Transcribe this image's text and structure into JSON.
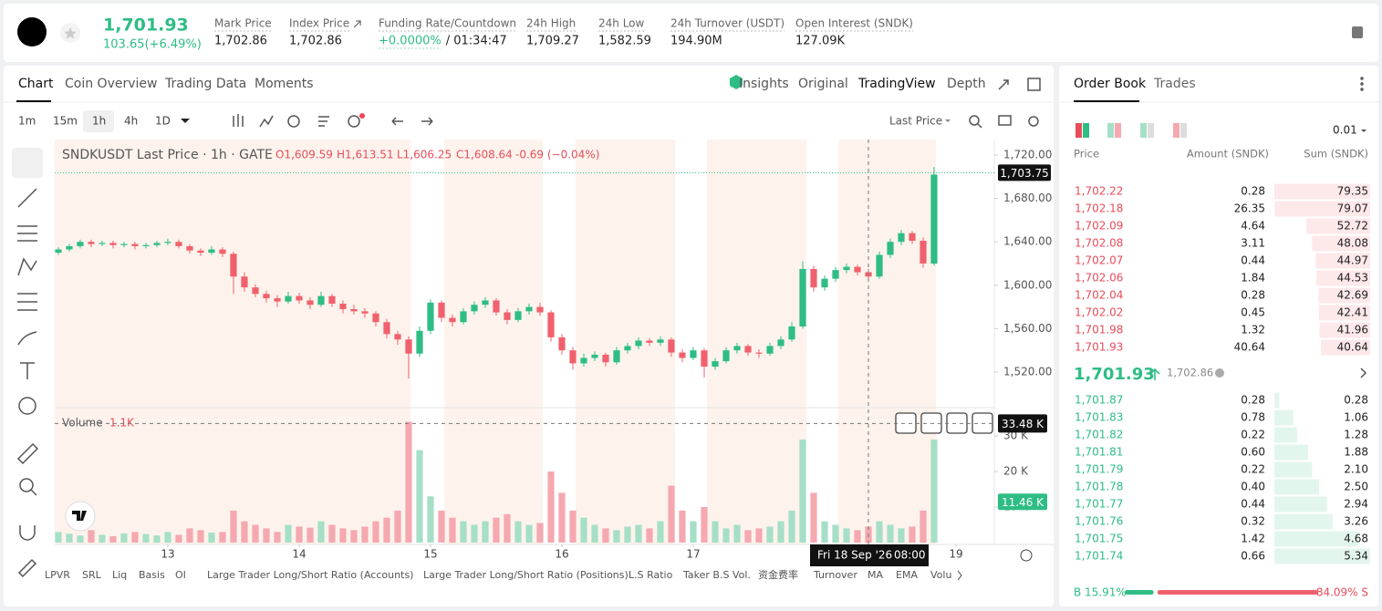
{
  "header": {
    "price": "1,701.93",
    "change": "103.65(+6.49%)",
    "stats": [
      {
        "label": "Mark Price",
        "value": "1,702.86"
      },
      {
        "label": "Index Price",
        "value": "1,702.86"
      },
      {
        "label": "Funding Rate/Countdown",
        "value": "+0.0000%",
        "value2": "/ 01:34:47"
      },
      {
        "label": "24h High",
        "value": "1,709.27"
      },
      {
        "label": "24h Low",
        "value": "1,582.59"
      },
      {
        "label": "24h Turnover (USDT)",
        "value": "194.90M"
      },
      {
        "label": "Open Interest (SNDK)",
        "value": "127.09K"
      }
    ]
  },
  "tabs": [
    "Chart",
    "Coin Overview",
    "Trading Data",
    "Moments"
  ],
  "views": [
    "Insights",
    "Original",
    "TradingView",
    "Depth"
  ],
  "intervals": [
    "1m",
    "15m",
    "1h",
    "4h",
    "1D"
  ],
  "price_type": "Last Price",
  "chart": {
    "type": "candlestick",
    "legend_title": "SNDKUSDT Last Price · 1h · GATE",
    "ohlc": [
      "O1,609.59",
      "H1,613.51",
      "L1,606.25",
      "C1,608.64",
      "-0.69 (−0.04%)"
    ],
    "candles": [
      [
        1630,
        1635,
        1628,
        1633
      ],
      [
        1633,
        1638,
        1631,
        1636
      ],
      [
        1636,
        1642,
        1634,
        1640
      ],
      [
        1640,
        1642,
        1635,
        1638
      ],
      [
        1638,
        1641,
        1636,
        1639
      ],
      [
        1639,
        1641,
        1634,
        1637
      ],
      [
        1637,
        1640,
        1635,
        1638
      ],
      [
        1638,
        1640,
        1633,
        1636
      ],
      [
        1636,
        1639,
        1634,
        1637
      ],
      [
        1637,
        1641,
        1635,
        1639
      ],
      [
        1639,
        1643,
        1637,
        1640
      ],
      [
        1640,
        1642,
        1634,
        1636
      ],
      [
        1636,
        1638,
        1629,
        1632
      ],
      [
        1632,
        1634,
        1627,
        1630
      ],
      [
        1630,
        1636,
        1628,
        1633
      ],
      [
        1633,
        1635,
        1626,
        1629
      ],
      [
        1629,
        1631,
        1592,
        1608
      ],
      [
        1608,
        1612,
        1594,
        1598
      ],
      [
        1598,
        1601,
        1589,
        1592
      ],
      [
        1592,
        1595,
        1584,
        1588
      ],
      [
        1588,
        1591,
        1580,
        1585
      ],
      [
        1585,
        1594,
        1583,
        1590
      ],
      [
        1590,
        1593,
        1583,
        1586
      ],
      [
        1586,
        1589,
        1578,
        1582
      ],
      [
        1582,
        1594,
        1580,
        1590
      ],
      [
        1590,
        1592,
        1580,
        1583
      ],
      [
        1583,
        1586,
        1574,
        1578
      ],
      [
        1578,
        1582,
        1573,
        1576
      ],
      [
        1576,
        1579,
        1570,
        1574
      ],
      [
        1574,
        1576,
        1562,
        1566
      ],
      [
        1566,
        1569,
        1551,
        1555
      ],
      [
        1555,
        1558,
        1545,
        1550
      ],
      [
        1550,
        1553,
        1514,
        1537
      ],
      [
        1537,
        1562,
        1534,
        1558
      ],
      [
        1558,
        1587,
        1555,
        1584
      ],
      [
        1584,
        1586,
        1566,
        1570
      ],
      [
        1570,
        1573,
        1562,
        1566
      ],
      [
        1566,
        1579,
        1564,
        1576
      ],
      [
        1576,
        1585,
        1573,
        1582
      ],
      [
        1582,
        1589,
        1579,
        1586
      ],
      [
        1586,
        1588,
        1572,
        1575
      ],
      [
        1575,
        1578,
        1564,
        1568
      ],
      [
        1568,
        1579,
        1566,
        1576
      ],
      [
        1576,
        1583,
        1573,
        1580
      ],
      [
        1580,
        1584,
        1572,
        1575
      ],
      [
        1575,
        1577,
        1548,
        1552
      ],
      [
        1552,
        1555,
        1536,
        1540
      ],
      [
        1540,
        1543,
        1522,
        1528
      ],
      [
        1528,
        1537,
        1525,
        1533
      ],
      [
        1533,
        1539,
        1530,
        1536
      ],
      [
        1536,
        1538,
        1525,
        1529
      ],
      [
        1529,
        1543,
        1527,
        1540
      ],
      [
        1540,
        1547,
        1537,
        1544
      ],
      [
        1544,
        1552,
        1541,
        1549
      ],
      [
        1549,
        1551,
        1544,
        1547
      ],
      [
        1547,
        1553,
        1544,
        1550
      ],
      [
        1550,
        1552,
        1534,
        1538
      ],
      [
        1538,
        1541,
        1529,
        1533
      ],
      [
        1533,
        1543,
        1531,
        1540
      ],
      [
        1540,
        1542,
        1515,
        1525
      ],
      [
        1525,
        1533,
        1522,
        1530
      ],
      [
        1530,
        1543,
        1528,
        1540
      ],
      [
        1540,
        1547,
        1537,
        1544
      ],
      [
        1544,
        1546,
        1535,
        1538
      ],
      [
        1538,
        1541,
        1533,
        1537
      ],
      [
        1537,
        1547,
        1535,
        1544
      ],
      [
        1544,
        1553,
        1541,
        1550
      ],
      [
        1550,
        1566,
        1548,
        1562
      ],
      [
        1562,
        1622,
        1560,
        1615
      ],
      [
        1615,
        1618,
        1594,
        1598
      ],
      [
        1598,
        1609,
        1595,
        1606
      ],
      [
        1606,
        1617,
        1603,
        1614
      ],
      [
        1614,
        1620,
        1611,
        1617
      ],
      [
        1617,
        1619,
        1609,
        1612
      ],
      [
        1612,
        1615,
        1604,
        1608
      ],
      [
        1608,
        1631,
        1606,
        1628
      ],
      [
        1628,
        1643,
        1625,
        1640
      ],
      [
        1640,
        1651,
        1637,
        1648
      ],
      [
        1648,
        1650,
        1638,
        1641
      ],
      [
        1641,
        1644,
        1616,
        1620
      ],
      [
        1620,
        1709,
        1618,
        1702
      ]
    ],
    "volumes": [
      3000,
      2500,
      2000,
      3500,
      2200,
      1800,
      2600,
      3000,
      2400,
      2000,
      3000,
      2200,
      4000,
      3500,
      2800,
      3000,
      9000,
      6000,
      5000,
      4000,
      3000,
      5000,
      4500,
      4200,
      6000,
      5000,
      4000,
      3500,
      4500,
      6000,
      7000,
      9000,
      34000,
      26000,
      13000,
      9000,
      7000,
      6000,
      5000,
      6000,
      7000,
      8000,
      6000,
      5000,
      5500,
      20000,
      14000,
      9000,
      7000,
      5000,
      4000,
      3500,
      4500,
      5000,
      4000,
      6000,
      16000,
      9000,
      6000,
      10000,
      6000,
      4000,
      5000,
      3500,
      4000,
      4500,
      6000,
      9000,
      29000,
      14000,
      6000,
      5000,
      4000,
      3500,
      4500,
      6000,
      5000,
      4000,
      4500,
      9000,
      29000
    ],
    "up_color": "#2ebd85",
    "down_color": "#f0616d",
    "up_volume_color": "#a6dfc7",
    "down_volume_color": "#f5a8b0",
    "ylim": [
      1487.2,
      1734.3
    ],
    "yticks": [
      {
        "value": 1520,
        "label": "1,520.00"
      },
      {
        "value": 1560,
        "label": "1,560.00"
      },
      {
        "value": 1600,
        "label": "1,600.00"
      },
      {
        "value": 1640,
        "label": "1,640.00"
      },
      {
        "value": 1680,
        "label": "1,680.00"
      },
      {
        "value": 1720,
        "label": "1,720.00"
      }
    ],
    "vol_ylim": [
      0,
      35900
    ],
    "vol_yticks": [
      {
        "value": 10000,
        "label": "10 K"
      },
      {
        "value": 20000,
        "label": "20 K"
      },
      {
        "value": 30000,
        "label": "30 K"
      }
    ],
    "xlim": [
      -0.33,
      85.5
    ],
    "xticks": [
      {
        "value": 10,
        "label": "13"
      },
      {
        "value": 22,
        "label": "14"
      },
      {
        "value": 34,
        "label": "15"
      },
      {
        "value": 46,
        "label": "16"
      },
      {
        "value": 58,
        "label": "17"
      },
      {
        "value": 82,
        "label": "19"
      }
    ],
    "last_price": {
      "value": 1703.75,
      "label": "1,703.75"
    },
    "volume_title": "Volume",
    "volume_value": "1.1K",
    "crosshair": {
      "x": 74,
      "label": "Fri 18 Sep '26",
      "time": "08:00",
      "volume": {
        "value": 33480,
        "label": "33.48 K"
      }
    },
    "last_volume": {
      "value": 11460,
      "label": "11.46 K"
    },
    "grid": false
  },
  "indicators": [
    "LPVR",
    "SRL",
    "Liq",
    "Basis",
    "OI",
    "Large Trader Long/Short Ratio (Accounts)",
    "Large Trader Long/Short Ratio (Positions)",
    "L.S Ratio",
    "Taker B.S Vol.",
    "资金费率",
    "Turnover",
    "MA",
    "EMA",
    "Volu"
  ],
  "orderbook": {
    "tabs": [
      "Order Book",
      "Trades"
    ],
    "tick": "0.01",
    "columns": [
      "Price",
      "Amount (SNDK)",
      "Sum (SNDK)"
    ],
    "asks": [
      [
        "1,702.22",
        "0.28",
        "79.35"
      ],
      [
        "1,702.18",
        "26.35",
        "79.07"
      ],
      [
        "1,702.09",
        "4.64",
        "52.72"
      ],
      [
        "1,702.08",
        "3.11",
        "48.08"
      ],
      [
        "1,702.07",
        "0.44",
        "44.97"
      ],
      [
        "1,702.06",
        "1.84",
        "44.53"
      ],
      [
        "1,702.04",
        "0.28",
        "42.69"
      ],
      [
        "1,702.02",
        "0.45",
        "42.41"
      ],
      [
        "1,701.98",
        "1.32",
        "41.96"
      ],
      [
        "1,701.93",
        "40.64",
        "40.64"
      ]
    ],
    "mid": "1,701.93",
    "mark": "1,702.86",
    "bids": [
      [
        "1,701.87",
        "0.28",
        "0.28"
      ],
      [
        "1,701.83",
        "0.78",
        "1.06"
      ],
      [
        "1,701.82",
        "0.22",
        "1.28"
      ],
      [
        "1,701.81",
        "0.60",
        "1.88"
      ],
      [
        "1,701.79",
        "0.22",
        "2.10"
      ],
      [
        "1,701.78",
        "0.40",
        "2.50"
      ],
      [
        "1,701.77",
        "0.44",
        "2.94"
      ],
      [
        "1,701.76",
        "0.32",
        "3.26"
      ],
      [
        "1,701.75",
        "1.42",
        "4.68"
      ],
      [
        "1,701.74",
        "0.66",
        "5.34"
      ]
    ],
    "buy": {
      "value": 15.91,
      "label": "B 15.91%"
    },
    "sell": {
      "value": 84.09,
      "label": "84.09% S"
    }
  }
}
